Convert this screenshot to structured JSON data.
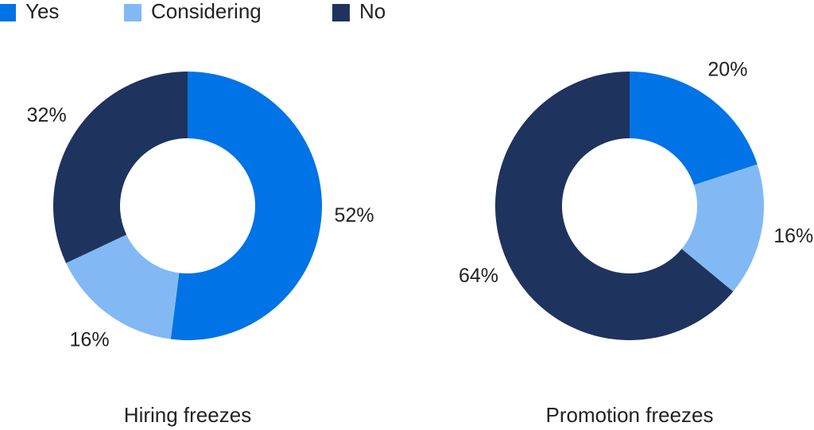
{
  "chart_data": [
    {
      "type": "pie",
      "title": "Hiring freezes",
      "categories": [
        "Yes",
        "Considering",
        "No"
      ],
      "colors": [
        "#0073e6",
        "#82b9f4",
        "#1e335e"
      ],
      "values": [
        52,
        16,
        32
      ],
      "value_labels": [
        "52%",
        "16%",
        "32%"
      ]
    },
    {
      "type": "pie",
      "title": "Promotion freezes",
      "categories": [
        "Yes",
        "Considering",
        "No"
      ],
      "colors": [
        "#0073e6",
        "#82b9f4",
        "#1e335e"
      ],
      "values": [
        20,
        16,
        64
      ],
      "value_labels": [
        "20%",
        "16%",
        "64%"
      ]
    }
  ]
}
